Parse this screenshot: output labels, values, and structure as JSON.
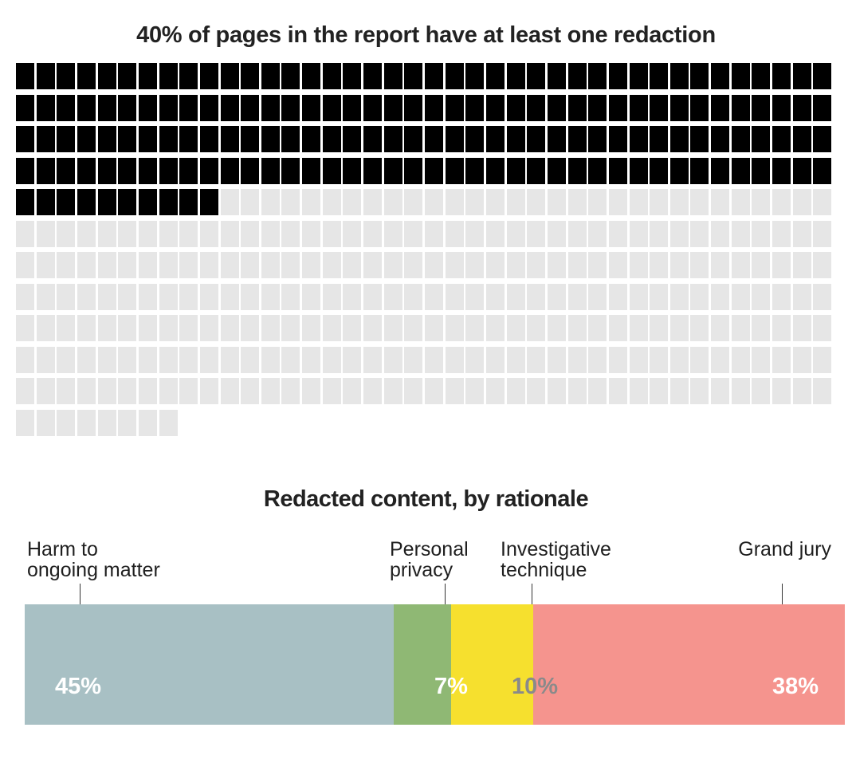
{
  "waffle": {
    "title": "40% of pages in the report have at least one redaction",
    "columns": 40,
    "total_pages": 448,
    "redacted_pages": 170,
    "colors": {
      "redacted": "#000000",
      "not_redacted": "#e6e6e6"
    }
  },
  "bar": {
    "title": "Redacted content, by rationale"
  },
  "chart_data": [
    {
      "type": "waffle",
      "title": "40% of pages in the report have at least one redaction",
      "total": 448,
      "highlighted": 170,
      "columns": 40
    },
    {
      "type": "bar",
      "stacked": true,
      "title": "Redacted content, by rationale",
      "unit": "%",
      "series": [
        {
          "name": "Harm to ongoing matter",
          "label_lines": [
            "Harm to",
            "ongoing matter"
          ],
          "value": 45,
          "value_label": "45%",
          "color": "#a8c0c4",
          "text_color": "#ffffff"
        },
        {
          "name": "Personal privacy",
          "label_lines": [
            "Personal",
            "privacy"
          ],
          "value": 7,
          "value_label": "7%",
          "color": "#8fb874",
          "text_color": "#ffffff"
        },
        {
          "name": "Investigative technique",
          "label_lines": [
            "Investigative",
            "technique"
          ],
          "value": 10,
          "value_label": "10%",
          "color": "#f6e02e",
          "text_color": "#8a8a8a"
        },
        {
          "name": "Grand jury",
          "label_lines": [
            "Grand jury"
          ],
          "value": 38,
          "value_label": "38%",
          "color": "#f5948e",
          "text_color": "#ffffff"
        }
      ]
    }
  ]
}
